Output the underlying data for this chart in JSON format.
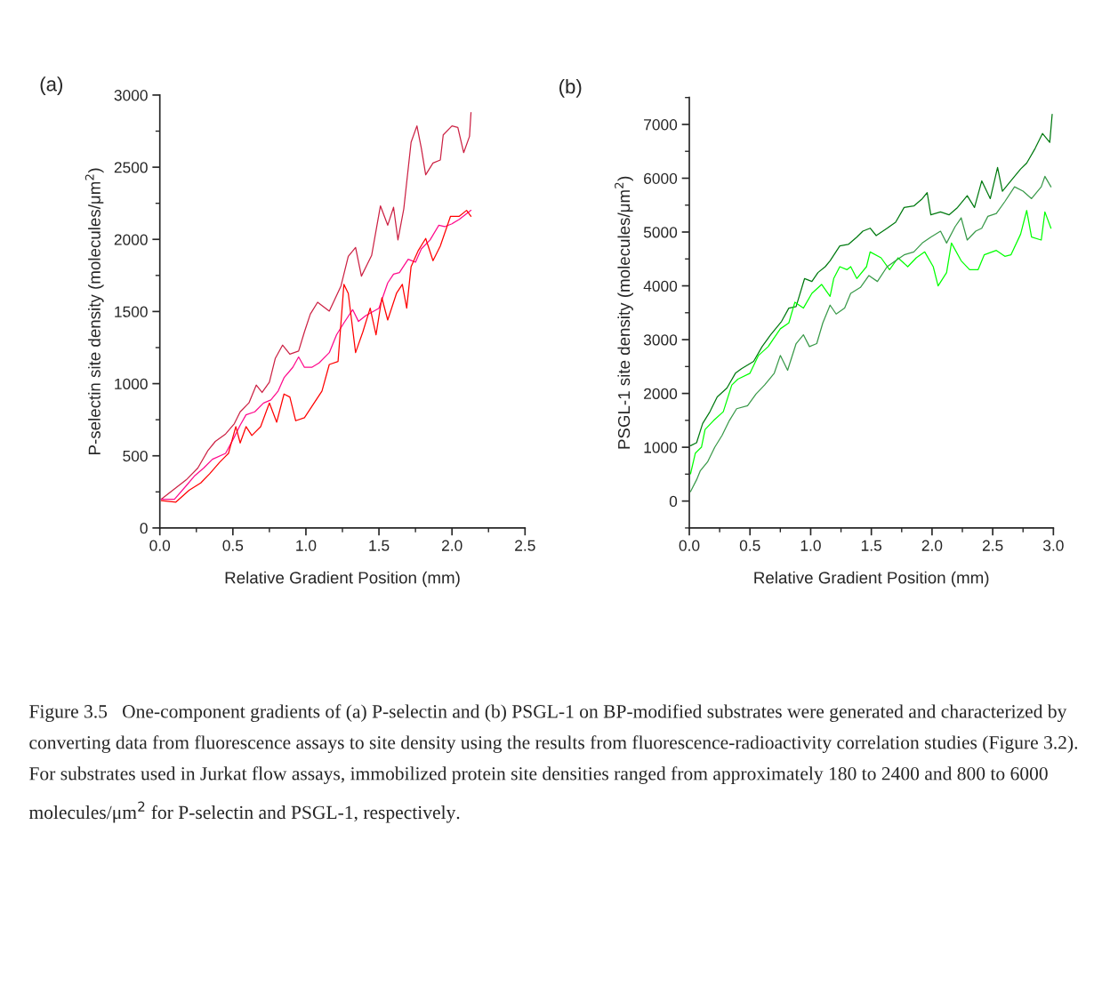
{
  "chart_data": [
    {
      "type": "line",
      "title": "(a)",
      "xlabel": "Relative Gradient Position (mm)",
      "ylabel": "P-selectin site density (molecules/μm$^{2}$)",
      "xlim": [
        0,
        2.5
      ],
      "xticks": [
        {
          "value": 0,
          "label": "0.0"
        },
        {
          "value": 0.5,
          "label": "0.5"
        },
        {
          "value": 1,
          "label": "1.0"
        },
        {
          "value": 1.5,
          "label": "1.5"
        },
        {
          "value": 2,
          "label": "2.0"
        },
        {
          "value": 2.5,
          "label": "2.5"
        }
      ],
      "ylim": [
        0,
        3000
      ],
      "yticks": [
        0,
        500,
        1000,
        1500,
        2000,
        2500,
        3000
      ],
      "series": [
        {
          "color": "#cc2244",
          "x": [
            0.01,
            0.1,
            0.18,
            0.26,
            0.33,
            0.38,
            0.45,
            0.51,
            0.55,
            0.61,
            0.66,
            0.7,
            0.75,
            0.79,
            0.84,
            0.89,
            0.95,
            0.99,
            1.03,
            1.08,
            1.16,
            1.24,
            1.29,
            1.34,
            1.38,
            1.42,
            1.45,
            1.51,
            1.56,
            1.6,
            1.63,
            1.67,
            1.72,
            1.76,
            1.79,
            1.82,
            1.87,
            1.92,
            1.94,
            2.0,
            2.04,
            2.08,
            2.12,
            2.13
          ],
          "values": [
            199,
            271,
            333,
            415,
            538,
            600,
            651,
            723,
            805,
            867,
            990,
            939,
            1010,
            1174,
            1267,
            1205,
            1226,
            1359,
            1482,
            1564,
            1503,
            1677,
            1882,
            1944,
            1745,
            1827,
            1889,
            2232,
            2098,
            2222,
            1996,
            2211,
            2673,
            2786,
            2632,
            2447,
            2529,
            2550,
            2724,
            2786,
            2776,
            2601,
            2714,
            2878
          ]
        },
        {
          "color": "#ff0a8c",
          "x": [
            0.01,
            0.1,
            0.18,
            0.24,
            0.3,
            0.36,
            0.45,
            0.51,
            0.55,
            0.59,
            0.65,
            0.71,
            0.76,
            0.81,
            0.85,
            0.91,
            0.95,
            0.99,
            1.04,
            1.09,
            1.16,
            1.21,
            1.26,
            1.32,
            1.36,
            1.41,
            1.5,
            1.56,
            1.6,
            1.64,
            1.7,
            1.75,
            1.79,
            1.85,
            1.91,
            1.95,
            2.0,
            2.05,
            2.13
          ],
          "values": [
            199,
            199,
            292,
            363,
            415,
            476,
            517,
            630,
            712,
            784,
            805,
            866,
            887,
            949,
            1041,
            1113,
            1185,
            1113,
            1113,
            1144,
            1215,
            1339,
            1421,
            1513,
            1431,
            1472,
            1523,
            1698,
            1759,
            1770,
            1862,
            1842,
            1934,
            1996,
            2098,
            2088,
            2108,
            2139,
            2201
          ]
        },
        {
          "color": "#ff0000",
          "x": [
            0.01,
            0.11,
            0.2,
            0.28,
            0.34,
            0.41,
            0.47,
            0.52,
            0.55,
            0.59,
            0.63,
            0.69,
            0.75,
            0.8,
            0.85,
            0.89,
            0.93,
            0.99,
            1.05,
            1.11,
            1.16,
            1.22,
            1.26,
            1.29,
            1.34,
            1.39,
            1.44,
            1.48,
            1.52,
            1.56,
            1.62,
            1.66,
            1.69,
            1.72,
            1.77,
            1.82,
            1.87,
            1.92,
            1.99,
            2.05,
            2.1,
            2.13
          ],
          "values": [
            189,
            179,
            261,
            312,
            374,
            456,
            517,
            702,
            589,
            702,
            641,
            702,
            866,
            733,
            928,
            907,
            743,
            764,
            856,
            949,
            1133,
            1154,
            1688,
            1626,
            1215,
            1359,
            1523,
            1339,
            1595,
            1441,
            1626,
            1688,
            1523,
            1811,
            1924,
            2006,
            1852,
            1954,
            2160,
            2160,
            2201,
            2160
          ]
        }
      ]
    },
    {
      "type": "line",
      "title": "(b)",
      "xlabel": "Relative Gradient Position (mm)",
      "ylabel": "PSGL-1 site density (molecules/μm$^{2}$)",
      "xlim": [
        0,
        3
      ],
      "xticks": [
        {
          "value": 0,
          "label": "0.0"
        },
        {
          "value": 0.5,
          "label": "0.5"
        },
        {
          "value": 1,
          "label": "1.0"
        },
        {
          "value": 1.5,
          "label": "1.5"
        },
        {
          "value": 2,
          "label": "2.0"
        },
        {
          "value": 2.5,
          "label": "2.5"
        },
        {
          "value": 3,
          "label": "3.0"
        }
      ],
      "ylim": [
        -500,
        7500
      ],
      "yticks": [
        0,
        1000,
        2000,
        3000,
        4000,
        5000,
        6000,
        7000
      ],
      "series": [
        {
          "color": "#007a10",
          "x": [
            0.01,
            0.06,
            0.11,
            0.17,
            0.23,
            0.31,
            0.38,
            0.43,
            0.53,
            0.6,
            0.67,
            0.76,
            0.82,
            0.88,
            0.95,
            1.01,
            1.06,
            1.12,
            1.16,
            1.24,
            1.31,
            1.38,
            1.43,
            1.49,
            1.54,
            1.63,
            1.7,
            1.77,
            1.85,
            1.92,
            1.96,
            1.99,
            2.07,
            2.14,
            2.21,
            2.29,
            2.35,
            2.41,
            2.48,
            2.54,
            2.58,
            2.65,
            2.73,
            2.78,
            2.85,
            2.91,
            2.97,
            2.99
          ],
          "values": [
            1029,
            1084,
            1441,
            1661,
            1936,
            2101,
            2376,
            2459,
            2596,
            2871,
            3091,
            3339,
            3586,
            3614,
            4136,
            4081,
            4246,
            4356,
            4466,
            4741,
            4769,
            4906,
            5016,
            5071,
            4934,
            5071,
            5181,
            5456,
            5484,
            5621,
            5731,
            5319,
            5374,
            5319,
            5456,
            5676,
            5456,
            5951,
            5621,
            6199,
            5759,
            5951,
            6171,
            6281,
            6556,
            6831,
            6666,
            7189
          ]
        },
        {
          "color": "#00ff00",
          "x": [
            0.01,
            0.05,
            0.1,
            0.13,
            0.2,
            0.28,
            0.35,
            0.4,
            0.5,
            0.57,
            0.65,
            0.75,
            0.82,
            0.87,
            0.94,
            1.01,
            1.09,
            1.16,
            1.19,
            1.24,
            1.3,
            1.33,
            1.38,
            1.46,
            1.49,
            1.58,
            1.65,
            1.72,
            1.8,
            1.87,
            1.94,
            2.01,
            2.05,
            2.12,
            2.16,
            2.24,
            2.31,
            2.38,
            2.43,
            2.53,
            2.6,
            2.65,
            2.73,
            2.78,
            2.82,
            2.9,
            2.93,
            2.98
          ],
          "values": [
            506,
            891,
            1001,
            1331,
            1496,
            1661,
            2156,
            2266,
            2376,
            2706,
            2871,
            3201,
            3311,
            3696,
            3586,
            3861,
            4026,
            3806,
            4136,
            4356,
            4301,
            4356,
            4136,
            4356,
            4631,
            4521,
            4301,
            4521,
            4356,
            4521,
            4631,
            4356,
            3999,
            4246,
            4796,
            4466,
            4301,
            4301,
            4576,
            4659,
            4549,
            4576,
            4961,
            5401,
            4906,
            4851,
            5374,
            5071
          ]
        },
        {
          "color": "#3a9a4a",
          "x": [
            0.01,
            0.06,
            0.09,
            0.15,
            0.21,
            0.27,
            0.33,
            0.39,
            0.48,
            0.55,
            0.62,
            0.7,
            0.75,
            0.81,
            0.88,
            0.94,
            0.99,
            1.05,
            1.1,
            1.16,
            1.21,
            1.28,
            1.33,
            1.41,
            1.48,
            1.55,
            1.63,
            1.7,
            1.77,
            1.85,
            1.92,
            1.99,
            2.07,
            2.12,
            2.19,
            2.24,
            2.29,
            2.36,
            2.41,
            2.46,
            2.53,
            2.6,
            2.68,
            2.75,
            2.82,
            2.9,
            2.93,
            2.98
          ],
          "values": [
            176,
            396,
            561,
            726,
            1001,
            1221,
            1496,
            1716,
            1771,
            1991,
            2156,
            2376,
            2706,
            2431,
            2926,
            3091,
            2871,
            2926,
            3311,
            3641,
            3476,
            3586,
            3861,
            3971,
            4191,
            4081,
            4356,
            4466,
            4576,
            4631,
            4796,
            4906,
            5016,
            4796,
            5099,
            5264,
            4851,
            5016,
            5071,
            5291,
            5346,
            5566,
            5841,
            5759,
            5621,
            5841,
            6034,
            5841
          ]
        }
      ],
      "annotations": [
        "Figure 3.5   One-component gradients of (a) P-selectin and (b) PSGL-1 on BP-modified substrates were generated and characterized by converting data from fluorescence assays to site density using the results from fluorescence-radioactivity correlation studies (Figure 3.2). For substrates used in Jurkat flow assays, immobilized protein site densities ranged from approximately 180 to 2400 and 800 to 6000 molecules/μm$^{2}$ for P-selectin and PSGL-1, respectively."
      ]
    }
  ]
}
